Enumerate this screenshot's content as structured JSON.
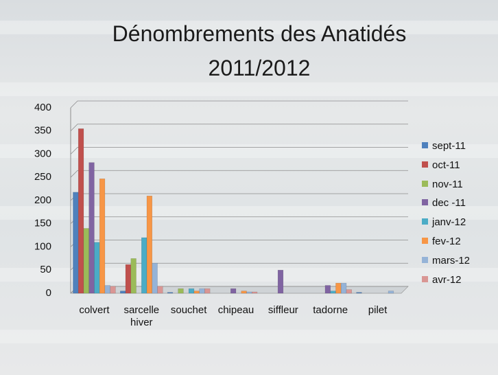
{
  "chart_data": {
    "type": "bar",
    "title": "Dénombrements des Anatidés 2011/2012",
    "categories": [
      "colvert",
      "sarcelle hiver",
      "souchet",
      "chipeau",
      "siffleur",
      "tadorne",
      "pilet"
    ],
    "series": [
      {
        "name": "sept-11",
        "color": "#4f81bd",
        "values": [
          218,
          5,
          2,
          0,
          0,
          0,
          2
        ]
      },
      {
        "name": "oct-11",
        "color": "#c0504d",
        "values": [
          355,
          62,
          0,
          0,
          0,
          0,
          0
        ]
      },
      {
        "name": "nov-11",
        "color": "#9bbb59",
        "values": [
          140,
          75,
          10,
          0,
          0,
          0,
          0
        ]
      },
      {
        "name": "dec -11",
        "color": "#8064a2",
        "values": [
          282,
          0,
          0,
          10,
          50,
          17,
          0
        ]
      },
      {
        "name": "janv-12",
        "color": "#4bacc6",
        "values": [
          110,
          120,
          10,
          0,
          0,
          5,
          0
        ]
      },
      {
        "name": "fev-12",
        "color": "#f79646",
        "values": [
          247,
          210,
          5,
          5,
          0,
          22,
          0
        ]
      },
      {
        "name": "mars-12",
        "color": "#95b3d7",
        "values": [
          17,
          65,
          10,
          3,
          0,
          22,
          5
        ]
      },
      {
        "name": "avr-12",
        "color": "#d99694",
        "values": [
          15,
          15,
          10,
          3,
          0,
          8,
          0
        ]
      }
    ],
    "ylim": [
      0,
      400
    ],
    "yticks": [
      0,
      50,
      100,
      150,
      200,
      250,
      300,
      350,
      400
    ],
    "grid": true,
    "legend": "right"
  }
}
